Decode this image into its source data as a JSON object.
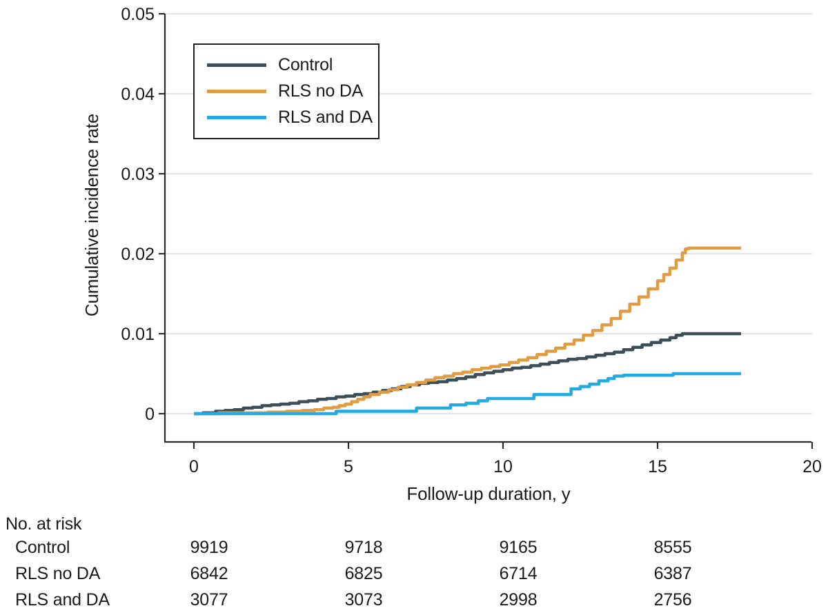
{
  "colors": {
    "background": "#FFFFFF",
    "axis": "#2B2B2B",
    "grid": "#E4E4E4",
    "text": "#1A1A1A",
    "legend_border": "#1F1F1F"
  },
  "chart_data": {
    "type": "line",
    "subtype": "step-after-cumulative-incidence",
    "title": "",
    "xlabel": "Follow-up duration, y",
    "ylabel": "Cumulative incidence rate",
    "xlim": [
      0,
      20
    ],
    "ylim": [
      0,
      0.05
    ],
    "grid": true,
    "legend_position": "upper left, boxed",
    "xticks": [
      [
        0,
        "0"
      ],
      [
        5,
        "5"
      ],
      [
        10,
        "10"
      ],
      [
        15,
        "15"
      ],
      [
        20,
        "20"
      ]
    ],
    "yticks": [
      [
        0,
        "0"
      ],
      [
        0.01,
        "0.01"
      ],
      [
        0.02,
        "0.02"
      ],
      [
        0.03,
        "0.03"
      ],
      [
        0.04,
        "0.04"
      ],
      [
        0.05,
        "0.05"
      ]
    ],
    "series": [
      {
        "name": "Control",
        "color": "#3C4F58",
        "points": [
          [
            0,
            0
          ],
          [
            0.3,
            0.0001
          ],
          [
            0.7,
            0.0003
          ],
          [
            1.0,
            0.0004
          ],
          [
            1.3,
            0.0005
          ],
          [
            1.6,
            0.0007
          ],
          [
            1.9,
            0.0008
          ],
          [
            2.2,
            0.001
          ],
          [
            2.5,
            0.0011
          ],
          [
            2.8,
            0.0012
          ],
          [
            3.1,
            0.0013
          ],
          [
            3.4,
            0.0015
          ],
          [
            3.7,
            0.0016
          ],
          [
            4.0,
            0.0018
          ],
          [
            4.3,
            0.0019
          ],
          [
            4.6,
            0.0021
          ],
          [
            4.9,
            0.0022
          ],
          [
            5.2,
            0.0024
          ],
          [
            5.5,
            0.0025
          ],
          [
            5.8,
            0.0027
          ],
          [
            6.1,
            0.0029
          ],
          [
            6.4,
            0.0031
          ],
          [
            6.7,
            0.0034
          ],
          [
            7.0,
            0.0036
          ],
          [
            7.3,
            0.0038
          ],
          [
            7.6,
            0.0039
          ],
          [
            7.9,
            0.004
          ],
          [
            8.2,
            0.0042
          ],
          [
            8.5,
            0.0044
          ],
          [
            8.8,
            0.0046
          ],
          [
            9.1,
            0.0049
          ],
          [
            9.4,
            0.0051
          ],
          [
            9.7,
            0.0053
          ],
          [
            10.0,
            0.0055
          ],
          [
            10.3,
            0.0057
          ],
          [
            10.6,
            0.0058
          ],
          [
            10.9,
            0.006
          ],
          [
            11.2,
            0.0062
          ],
          [
            11.5,
            0.0064
          ],
          [
            11.8,
            0.0066
          ],
          [
            12.1,
            0.0068
          ],
          [
            12.4,
            0.0069
          ],
          [
            12.7,
            0.0071
          ],
          [
            13.0,
            0.0073
          ],
          [
            13.3,
            0.0075
          ],
          [
            13.6,
            0.0077
          ],
          [
            13.9,
            0.008
          ],
          [
            14.2,
            0.0083
          ],
          [
            14.5,
            0.0086
          ],
          [
            14.8,
            0.0089
          ],
          [
            15.1,
            0.0092
          ],
          [
            15.4,
            0.0095
          ],
          [
            15.6,
            0.0098
          ],
          [
            15.8,
            0.01
          ],
          [
            17.7,
            0.01
          ]
        ]
      },
      {
        "name": "RLS no DA",
        "color": "#E09C43",
        "points": [
          [
            0,
            0
          ],
          [
            0.8,
            0.0001
          ],
          [
            1.6,
            0.0001
          ],
          [
            2.4,
            0.0002
          ],
          [
            3.0,
            0.0003
          ],
          [
            3.5,
            0.0004
          ],
          [
            3.9,
            0.0005
          ],
          [
            4.2,
            0.0007
          ],
          [
            4.5,
            0.0008
          ],
          [
            4.7,
            0.001
          ],
          [
            4.9,
            0.0012
          ],
          [
            5.1,
            0.0015
          ],
          [
            5.3,
            0.0018
          ],
          [
            5.5,
            0.0021
          ],
          [
            5.7,
            0.0024
          ],
          [
            6.0,
            0.0027
          ],
          [
            6.3,
            0.003
          ],
          [
            6.6,
            0.0033
          ],
          [
            6.9,
            0.0036
          ],
          [
            7.2,
            0.0039
          ],
          [
            7.5,
            0.0042
          ],
          [
            7.8,
            0.0045
          ],
          [
            8.1,
            0.0047
          ],
          [
            8.4,
            0.005
          ],
          [
            8.7,
            0.0052
          ],
          [
            9.0,
            0.0055
          ],
          [
            9.3,
            0.0057
          ],
          [
            9.6,
            0.0059
          ],
          [
            9.9,
            0.0061
          ],
          [
            10.2,
            0.0064
          ],
          [
            10.5,
            0.0067
          ],
          [
            10.8,
            0.007
          ],
          [
            11.1,
            0.0074
          ],
          [
            11.4,
            0.0078
          ],
          [
            11.7,
            0.0082
          ],
          [
            12.0,
            0.0087
          ],
          [
            12.3,
            0.0092
          ],
          [
            12.6,
            0.0098
          ],
          [
            12.9,
            0.0104
          ],
          [
            13.2,
            0.0111
          ],
          [
            13.5,
            0.0119
          ],
          [
            13.8,
            0.0128
          ],
          [
            14.1,
            0.0137
          ],
          [
            14.4,
            0.0146
          ],
          [
            14.7,
            0.0156
          ],
          [
            15.0,
            0.0166
          ],
          [
            15.2,
            0.0174
          ],
          [
            15.4,
            0.0182
          ],
          [
            15.6,
            0.0192
          ],
          [
            15.8,
            0.0201
          ],
          [
            15.9,
            0.0206
          ],
          [
            16.0,
            0.0207
          ],
          [
            17.7,
            0.0207
          ]
        ]
      },
      {
        "name": "RLS and DA",
        "color": "#24AAE1",
        "points": [
          [
            0,
            0
          ],
          [
            4.6,
            0.0003
          ],
          [
            7.2,
            0.0007
          ],
          [
            8.3,
            0.0011
          ],
          [
            8.8,
            0.0013
          ],
          [
            9.2,
            0.0016
          ],
          [
            9.5,
            0.0019
          ],
          [
            11.0,
            0.0024
          ],
          [
            12.2,
            0.0031
          ],
          [
            12.5,
            0.0034
          ],
          [
            12.8,
            0.0037
          ],
          [
            13.1,
            0.0041
          ],
          [
            13.4,
            0.0044
          ],
          [
            13.6,
            0.0047
          ],
          [
            13.9,
            0.0048
          ],
          [
            15.5,
            0.005
          ],
          [
            17.7,
            0.005
          ]
        ]
      }
    ]
  },
  "risk_table": {
    "header": "No. at risk",
    "time_points": [
      0,
      5,
      10,
      15
    ],
    "rows": [
      {
        "label": "Control",
        "values": [
          "9919",
          "9718",
          "9165",
          "8555"
        ]
      },
      {
        "label": "RLS no DA",
        "values": [
          "6842",
          "6825",
          "6714",
          "6387"
        ]
      },
      {
        "label": "RLS and DA",
        "values": [
          "3077",
          "3073",
          "2998",
          "2756"
        ]
      }
    ]
  }
}
